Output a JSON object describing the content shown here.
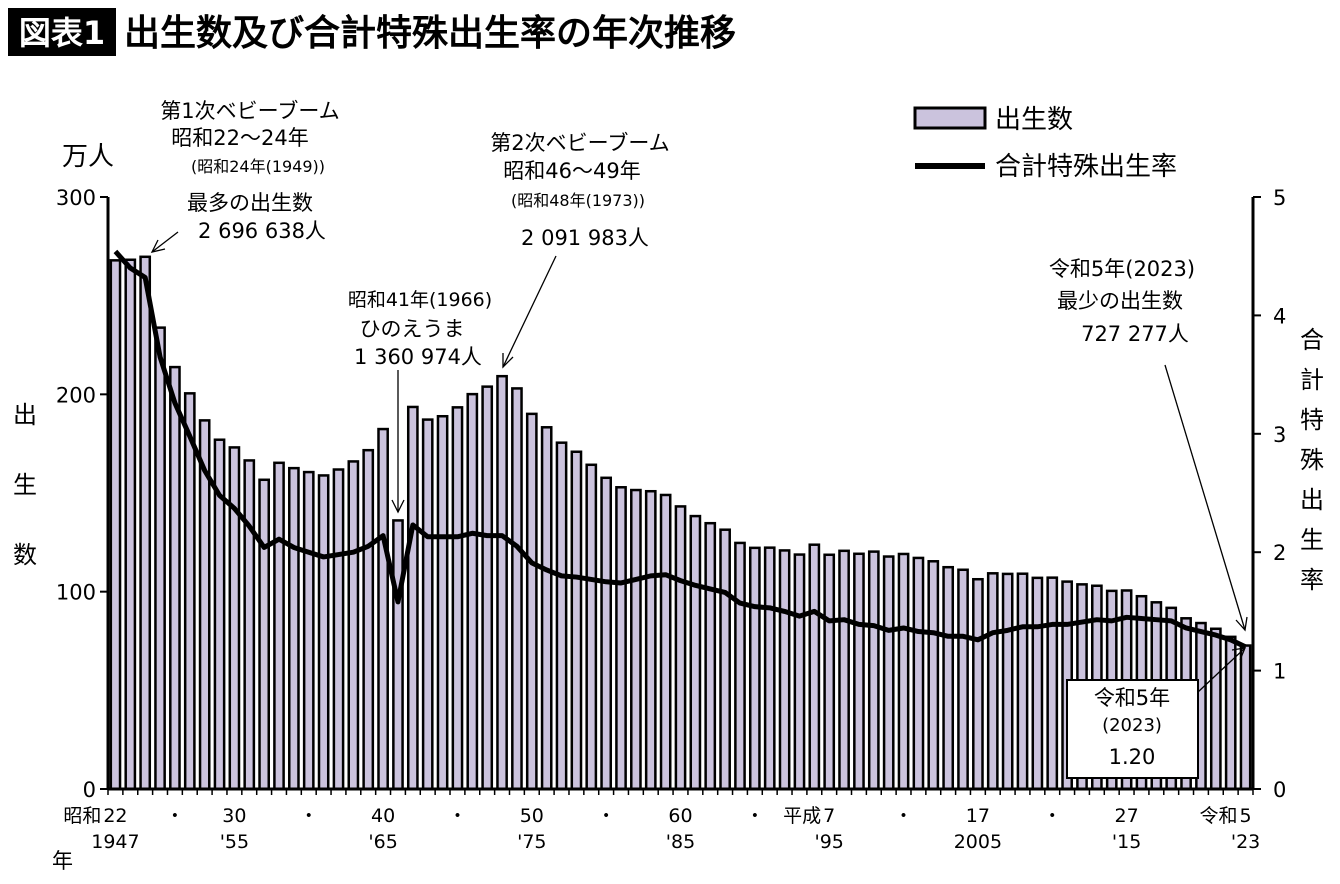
{
  "figure_label": "図表1",
  "title": "出生数及び合計特殊出生率の年次推移",
  "colors": {
    "bar_fill": "#cbc3dd",
    "bar_stroke": "#000000",
    "line": "#000000",
    "label_bg": "#000000"
  },
  "legend": {
    "bars": "出生数",
    "line": "合計特殊出生率",
    "placement": "top-right"
  },
  "axes": {
    "left_unit": "万人",
    "left_label": [
      "出",
      "生",
      "数"
    ],
    "right_label": [
      "合",
      "計",
      "特",
      "殊",
      "出",
      "生",
      "率"
    ],
    "x_label": "年"
  },
  "annotations": {
    "boom1": {
      "l1": "第1次ベビーブーム",
      "l2": "昭和22〜24年",
      "l3": "(昭和24年(1949))",
      "l4": "最多の出生数",
      "l5": "2 696 638人"
    },
    "hinoeuma": {
      "l1": "昭和41年(1966)",
      "l2": "ひのえうま",
      "l3": "1 360 974人"
    },
    "boom2": {
      "l1": "第2次ベビーブーム",
      "l2": "昭和46〜49年",
      "l3": "(昭和48年(1973))",
      "l4": "2 091 983人"
    },
    "min": {
      "l1": "令和5年(2023)",
      "l2": "最少の出生数",
      "l3": "727 277人"
    },
    "box": {
      "l1": "令和5年",
      "l2": "(2023)",
      "l3": "1.20"
    }
  },
  "chart_data": {
    "type": "bar+line",
    "x_start_year": 1947,
    "x": [
      1947,
      1948,
      1949,
      1950,
      1951,
      1952,
      1953,
      1954,
      1955,
      1956,
      1957,
      1958,
      1959,
      1960,
      1961,
      1962,
      1963,
      1964,
      1965,
      1966,
      1967,
      1968,
      1969,
      1970,
      1971,
      1972,
      1973,
      1974,
      1975,
      1976,
      1977,
      1978,
      1979,
      1980,
      1981,
      1982,
      1983,
      1984,
      1985,
      1986,
      1987,
      1988,
      1989,
      1990,
      1991,
      1992,
      1993,
      1994,
      1995,
      1996,
      1997,
      1998,
      1999,
      2000,
      2001,
      2002,
      2003,
      2004,
      2005,
      2006,
      2007,
      2008,
      2009,
      2010,
      2011,
      2012,
      2013,
      2014,
      2015,
      2016,
      2017,
      2018,
      2019,
      2020,
      2021,
      2022,
      2023
    ],
    "series": [
      {
        "name": "出生数",
        "type": "bar",
        "axis": "left",
        "values": [
          267.9,
          268.2,
          269.7,
          233.8,
          213.8,
          200.5,
          186.8,
          177.0,
          173.1,
          166.5,
          156.7,
          165.3,
          162.6,
          160.6,
          158.9,
          161.9,
          166.0,
          171.7,
          182.4,
          136.1,
          193.6,
          187.2,
          188.9,
          193.4,
          200.1,
          203.9,
          209.2,
          203.0,
          190.1,
          183.3,
          175.5,
          170.9,
          164.3,
          157.7,
          152.9,
          151.5,
          150.9,
          149.0,
          143.2,
          138.3,
          134.7,
          131.4,
          124.7,
          122.2,
          122.3,
          120.9,
          118.8,
          123.8,
          118.7,
          120.7,
          119.2,
          120.3,
          117.8,
          119.1,
          117.1,
          115.4,
          112.4,
          111.1,
          106.3,
          109.3,
          109.0,
          109.1,
          107.0,
          107.1,
          105.1,
          103.7,
          103.0,
          100.4,
          100.6,
          97.7,
          94.6,
          91.8,
          86.5,
          84.1,
          81.2,
          77.1,
          72.7
        ]
      },
      {
        "name": "合計特殊出生率",
        "type": "line",
        "axis": "right",
        "values": [
          4.54,
          4.4,
          4.32,
          3.65,
          3.26,
          2.98,
          2.69,
          2.48,
          2.37,
          2.22,
          2.04,
          2.11,
          2.04,
          2.0,
          1.96,
          1.98,
          2.0,
          2.05,
          2.14,
          1.58,
          2.23,
          2.13,
          2.13,
          2.13,
          2.16,
          2.14,
          2.14,
          2.05,
          1.91,
          1.85,
          1.8,
          1.79,
          1.77,
          1.75,
          1.74,
          1.77,
          1.8,
          1.81,
          1.76,
          1.72,
          1.69,
          1.66,
          1.57,
          1.54,
          1.53,
          1.5,
          1.46,
          1.5,
          1.42,
          1.43,
          1.39,
          1.38,
          1.34,
          1.36,
          1.33,
          1.32,
          1.29,
          1.29,
          1.26,
          1.32,
          1.34,
          1.37,
          1.37,
          1.39,
          1.39,
          1.41,
          1.43,
          1.42,
          1.45,
          1.44,
          1.43,
          1.42,
          1.36,
          1.33,
          1.3,
          1.26,
          1.2
        ]
      }
    ],
    "ylim_left": [
      0,
      300
    ],
    "yticks_left": [
      "0",
      "100",
      "200",
      "300"
    ],
    "ylim_right": [
      0,
      5
    ],
    "yticks_right": [
      "0",
      "1",
      "2",
      "3",
      "4",
      "5"
    ],
    "xticks": [
      {
        "year": 1947,
        "era": "昭和",
        "l1": "22",
        "l2": "1947"
      },
      {
        "year": 1951,
        "l1": "・",
        "l2": ""
      },
      {
        "year": 1955,
        "l1": "30",
        "l2": "'55"
      },
      {
        "year": 1960,
        "l1": "・",
        "l2": ""
      },
      {
        "year": 1965,
        "l1": "40",
        "l2": "'65"
      },
      {
        "year": 1970,
        "l1": "・",
        "l2": ""
      },
      {
        "year": 1975,
        "l1": "50",
        "l2": "'75"
      },
      {
        "year": 1980,
        "l1": "・",
        "l2": ""
      },
      {
        "year": 1985,
        "l1": "60",
        "l2": "'85"
      },
      {
        "year": 1990,
        "l1": "・",
        "l2": ""
      },
      {
        "year": 1995,
        "era": "平成",
        "l1": "7",
        "l2": "'95"
      },
      {
        "year": 2000,
        "l1": "・",
        "l2": ""
      },
      {
        "year": 2005,
        "l1": "17",
        "l2": "2005"
      },
      {
        "year": 2010,
        "l1": "・",
        "l2": ""
      },
      {
        "year": 2015,
        "l1": "27",
        "l2": "'15"
      },
      {
        "year": 2023,
        "era": "令和",
        "l1": "5",
        "l2": "'23"
      }
    ]
  }
}
